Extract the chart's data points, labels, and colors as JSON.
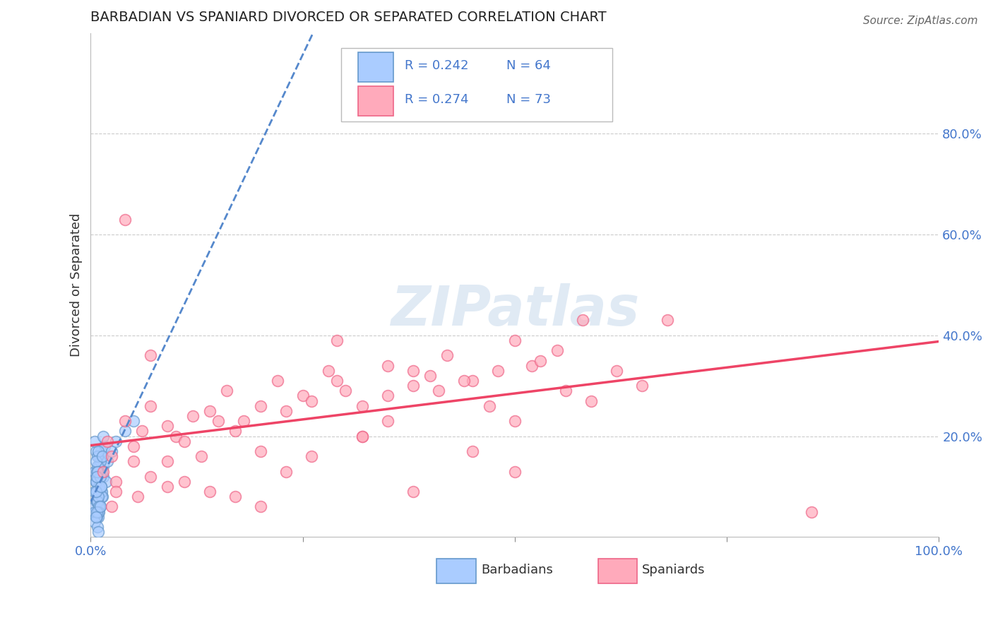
{
  "title": "BARBADIAN VS SPANIARD DIVORCED OR SEPARATED CORRELATION CHART",
  "source": "Source: ZipAtlas.com",
  "ylabel": "Divorced or Separated",
  "xlim": [
    0.0,
    1.0
  ],
  "ylim": [
    0.0,
    1.0
  ],
  "yticks": [
    0.2,
    0.4,
    0.6,
    0.8
  ],
  "ytick_labels": [
    "20.0%",
    "40.0%",
    "60.0%",
    "80.0%"
  ],
  "xticks": [
    0.0,
    0.25,
    0.5,
    0.75,
    1.0
  ],
  "xtick_labels": [
    "0.0%",
    "",
    "",
    "",
    "100.0%"
  ],
  "barbadian_fill": "#aaccff",
  "barbadian_edge": "#6699cc",
  "spaniard_fill": "#ffaabb",
  "spaniard_edge": "#ee6688",
  "barbadian_line_color": "#5588cc",
  "spaniard_line_color": "#ee4466",
  "legend_R_barbadian": "R = 0.242",
  "legend_N_barbadian": "N = 64",
  "legend_R_spaniard": "R = 0.274",
  "legend_N_spaniard": "N = 73",
  "watermark": "ZIPatlas",
  "background_color": "#ffffff",
  "text_color_blue": "#4477cc",
  "barbadians_x": [
    0.005,
    0.008,
    0.01,
    0.012,
    0.015,
    0.005,
    0.01,
    0.015,
    0.02,
    0.008,
    0.012,
    0.018,
    0.007,
    0.01,
    0.013,
    0.005,
    0.008,
    0.012,
    0.016,
    0.009,
    0.006,
    0.011,
    0.014,
    0.007,
    0.009,
    0.013,
    0.006,
    0.01,
    0.008,
    0.007,
    0.005,
    0.009,
    0.011,
    0.006,
    0.008,
    0.013,
    0.007,
    0.01,
    0.005,
    0.009,
    0.012,
    0.006,
    0.008,
    0.011,
    0.007,
    0.009,
    0.014,
    0.006,
    0.008,
    0.01,
    0.015,
    0.007,
    0.009,
    0.012,
    0.025,
    0.03,
    0.04,
    0.05,
    0.005,
    0.007,
    0.008,
    0.009,
    0.006,
    0.011
  ],
  "barbadians_y": [
    0.13,
    0.11,
    0.16,
    0.09,
    0.14,
    0.06,
    0.1,
    0.12,
    0.15,
    0.08,
    0.17,
    0.11,
    0.07,
    0.14,
    0.13,
    0.05,
    0.09,
    0.16,
    0.18,
    0.07,
    0.11,
    0.15,
    0.08,
    0.12,
    0.04,
    0.09,
    0.17,
    0.1,
    0.14,
    0.07,
    0.19,
    0.13,
    0.06,
    0.11,
    0.16,
    0.08,
    0.13,
    0.05,
    0.09,
    0.17,
    0.1,
    0.15,
    0.07,
    0.12,
    0.04,
    0.08,
    0.16,
    0.09,
    0.13,
    0.06,
    0.2,
    0.12,
    0.05,
    0.1,
    0.17,
    0.19,
    0.21,
    0.23,
    0.03,
    0.05,
    0.02,
    0.01,
    0.04,
    0.06
  ],
  "spaniards_x": [
    0.015,
    0.02,
    0.025,
    0.03,
    0.04,
    0.05,
    0.06,
    0.07,
    0.09,
    0.1,
    0.12,
    0.14,
    0.16,
    0.18,
    0.2,
    0.22,
    0.25,
    0.28,
    0.3,
    0.32,
    0.35,
    0.38,
    0.4,
    0.42,
    0.45,
    0.48,
    0.5,
    0.52,
    0.55,
    0.58,
    0.03,
    0.05,
    0.07,
    0.09,
    0.11,
    0.13,
    0.15,
    0.17,
    0.2,
    0.23,
    0.26,
    0.29,
    0.32,
    0.35,
    0.38,
    0.41,
    0.44,
    0.47,
    0.5,
    0.53,
    0.56,
    0.59,
    0.62,
    0.65,
    0.025,
    0.04,
    0.055,
    0.07,
    0.09,
    0.11,
    0.14,
    0.17,
    0.2,
    0.23,
    0.26,
    0.29,
    0.32,
    0.35,
    0.38,
    0.68,
    0.5,
    0.45,
    0.85
  ],
  "spaniards_y": [
    0.13,
    0.19,
    0.16,
    0.11,
    0.23,
    0.18,
    0.21,
    0.26,
    0.22,
    0.2,
    0.24,
    0.25,
    0.29,
    0.23,
    0.26,
    0.31,
    0.28,
    0.33,
    0.29,
    0.26,
    0.34,
    0.3,
    0.32,
    0.36,
    0.31,
    0.33,
    0.39,
    0.34,
    0.37,
    0.43,
    0.09,
    0.15,
    0.12,
    0.1,
    0.19,
    0.16,
    0.23,
    0.21,
    0.17,
    0.25,
    0.27,
    0.31,
    0.2,
    0.28,
    0.33,
    0.29,
    0.31,
    0.26,
    0.23,
    0.35,
    0.29,
    0.27,
    0.33,
    0.3,
    0.06,
    0.63,
    0.08,
    0.36,
    0.15,
    0.11,
    0.09,
    0.08,
    0.06,
    0.13,
    0.16,
    0.39,
    0.2,
    0.23,
    0.09,
    0.43,
    0.13,
    0.17,
    0.05
  ]
}
